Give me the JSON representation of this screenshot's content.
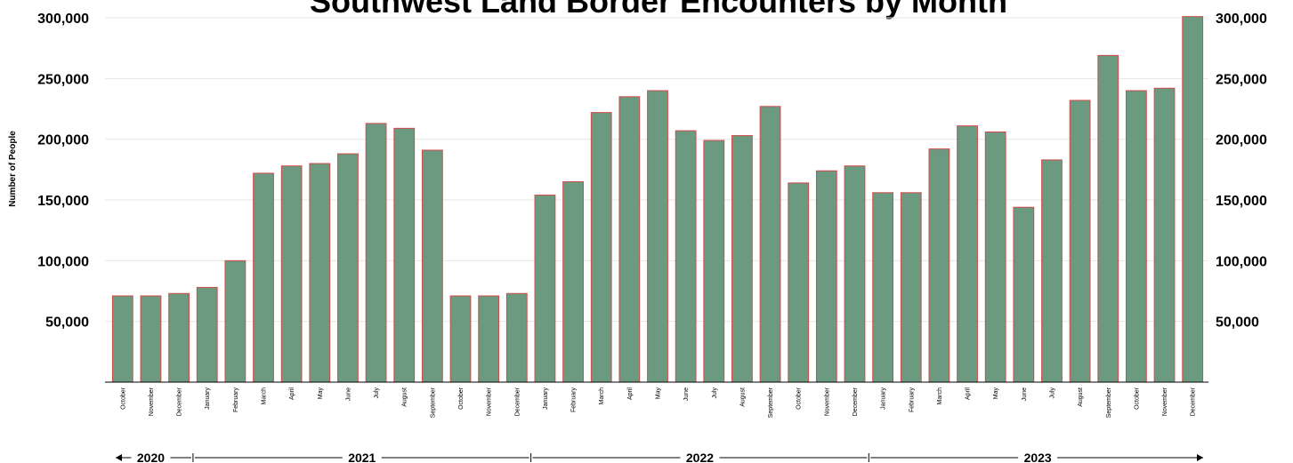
{
  "chart_data": {
    "type": "bar",
    "title": "Southwest Land Border Encounters by Month",
    "ylabel": "Number of People",
    "ylim": [
      0,
      300000
    ],
    "yticks": [
      "50,000",
      "100,000",
      "150,000",
      "200,000",
      "250,000",
      "300,000"
    ],
    "yticks_right": [
      "50,000",
      "100,000",
      "150,000",
      "200,000",
      "250,000",
      "300,000"
    ],
    "categories": [
      "October",
      "November",
      "December",
      "January",
      "February",
      "March",
      "April",
      "May",
      "June",
      "July",
      "August",
      "September",
      "October",
      "November",
      "December",
      "January",
      "February",
      "March",
      "April",
      "May",
      "June",
      "July",
      "August",
      "September",
      "October",
      "November",
      "December",
      "January",
      "February",
      "March",
      "April",
      "May",
      "June",
      "July",
      "August",
      "September",
      "October",
      "November",
      "December"
    ],
    "values": [
      71000,
      71000,
      73000,
      78000,
      100000,
      172000,
      178000,
      180000,
      188000,
      213000,
      209000,
      191000,
      71000,
      71000,
      73000,
      154000,
      165000,
      222000,
      235000,
      240000,
      207000,
      199000,
      203000,
      227000,
      164000,
      174000,
      178000,
      156000,
      156000,
      192000,
      211000,
      206000,
      144000,
      183000,
      232000,
      269000,
      240000,
      242000,
      301000
    ],
    "year_groups": [
      {
        "label": "2020",
        "start": 0,
        "end": 2
      },
      {
        "label": "2021",
        "start": 3,
        "end": 14
      },
      {
        "label": "2022",
        "start": 15,
        "end": 26
      },
      {
        "label": "2023",
        "start": 27,
        "end": 38
      }
    ],
    "colors": {
      "bar_fill": "#6b9a80",
      "bar_outline": "#d34a4a"
    },
    "grid": true
  }
}
